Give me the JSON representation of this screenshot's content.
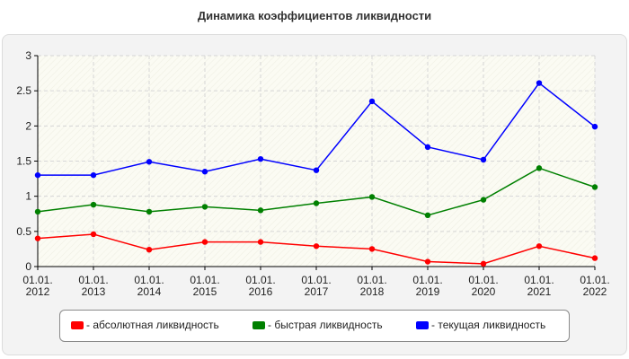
{
  "chart_data": {
    "type": "line",
    "title": "Динамика коэффициентов ликвидности",
    "xlabel": "",
    "ylabel": "",
    "categories": [
      "01.01.\n2012",
      "01.01.\n2013",
      "01.01.\n2014",
      "01.01.\n2015",
      "01.01.\n2016",
      "01.01.\n2017",
      "01.01.\n2018",
      "01.01.\n2019",
      "01.01.\n2020",
      "01.01.\n2021",
      "01.01.\n2022"
    ],
    "ylim": [
      0,
      3
    ],
    "yticks": [
      "0",
      "0.5",
      "1",
      "1.5",
      "2",
      "2.5",
      "3"
    ],
    "grid": true,
    "legend_position": "bottom",
    "series": [
      {
        "name": "- абсолютная ликвидность",
        "color": "#ff0000",
        "values": [
          0.4,
          0.46,
          0.24,
          0.35,
          0.35,
          0.29,
          0.25,
          0.07,
          0.04,
          0.29,
          0.12
        ]
      },
      {
        "name": "- быстрая ликвидность",
        "color": "#008000",
        "values": [
          0.78,
          0.88,
          0.78,
          0.85,
          0.8,
          0.9,
          0.99,
          0.73,
          0.95,
          1.4,
          1.13
        ]
      },
      {
        "name": "- текущая ликвидность",
        "color": "#0000ff",
        "values": [
          1.3,
          1.3,
          1.49,
          1.35,
          1.53,
          1.37,
          2.35,
          1.7,
          1.52,
          2.61,
          1.99
        ]
      }
    ]
  }
}
